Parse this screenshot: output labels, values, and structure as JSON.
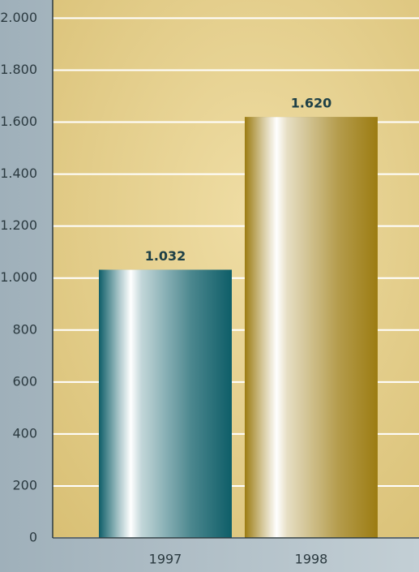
{
  "chart_data": {
    "type": "bar",
    "categories": [
      "1997",
      "1998"
    ],
    "values": [
      1032,
      1620
    ],
    "value_labels": [
      "1.032",
      "1.620"
    ],
    "colors": [
      "#0e5e68",
      "#9c7c12"
    ],
    "ylim": [
      0,
      2070
    ],
    "yticks": [
      0,
      {
        "value": 200,
        "label": "200"
      },
      {
        "value": 400,
        "label": "400"
      },
      {
        "value": 600,
        "label": "600"
      },
      {
        "value": 800,
        "label": "800"
      },
      {
        "value": 1000,
        "label": "1.000"
      },
      {
        "value": 1200,
        "label": "1.200"
      },
      {
        "value": 1400,
        "label": "1.400"
      },
      {
        "value": 1600,
        "label": "1.600"
      },
      {
        "value": 1800,
        "label": "1.800"
      },
      {
        "value": 2000,
        "label": "2.000"
      }
    ],
    "grid": true
  }
}
